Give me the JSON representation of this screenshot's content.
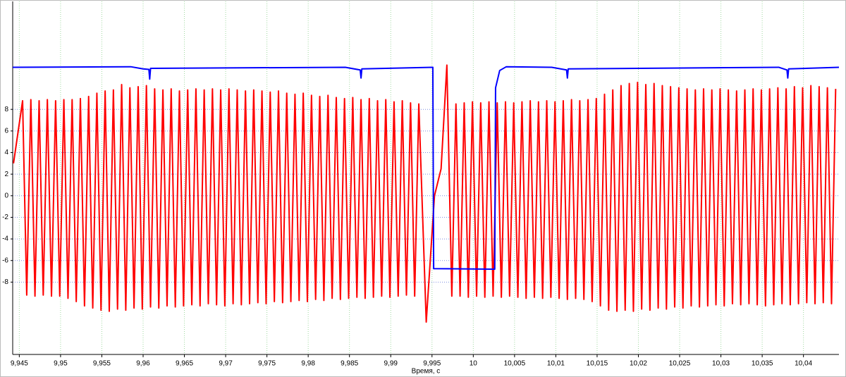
{
  "chart_data": {
    "type": "line",
    "x_label": "Время, с",
    "xlim": [
      9.9442,
      10.0443
    ],
    "ylim": [
      -14.7,
      18
    ],
    "grid": true,
    "xticks": [
      {
        "value": 9.945,
        "label": "9,945"
      },
      {
        "value": 9.95,
        "label": "9,95"
      },
      {
        "value": 9.955,
        "label": "9,955"
      },
      {
        "value": 9.96,
        "label": "9,96"
      },
      {
        "value": 9.965,
        "label": "9,965"
      },
      {
        "value": 9.97,
        "label": "9,97"
      },
      {
        "value": 9.975,
        "label": "9,975"
      },
      {
        "value": 9.98,
        "label": "9,98"
      },
      {
        "value": 9.985,
        "label": "9,985"
      },
      {
        "value": 9.99,
        "label": "9,99"
      },
      {
        "value": 9.995,
        "label": "9,995"
      },
      10,
      {
        "value": 10.005,
        "label": "10,005"
      },
      {
        "value": 10.01,
        "label": "10,01"
      },
      {
        "value": 10.015,
        "label": "10,015"
      },
      {
        "value": 10.02,
        "label": "10,02"
      },
      {
        "value": 10.025,
        "label": "10,025"
      },
      {
        "value": 10.03,
        "label": "10,03"
      },
      {
        "value": 10.035,
        "label": "10,035"
      },
      {
        "value": 10.04,
        "label": "10,04"
      }
    ],
    "yticks": [
      8,
      6,
      4,
      2,
      0,
      -2,
      -4,
      -6,
      -8
    ],
    "series": [
      {
        "color": "#ff0000",
        "x": [
          9.9443,
          9.9454,
          9.9459,
          9.9464,
          9.9469,
          9.9474,
          9.9479,
          9.9484,
          9.9489,
          9.9494,
          9.9499,
          9.9504,
          9.9509,
          9.9514,
          9.9519,
          9.9524,
          9.9529,
          9.9534,
          9.9539,
          9.9544,
          9.9549,
          9.9554,
          9.9559,
          9.9564,
          9.9569,
          9.9574,
          9.9579,
          9.9584,
          9.9589,
          9.9594,
          9.9599,
          9.9604,
          9.9609,
          9.9614,
          9.9619,
          9.9624,
          9.9629,
          9.9634,
          9.9639,
          9.9644,
          9.9649,
          9.9654,
          9.9659,
          9.9664,
          9.9669,
          9.9674,
          9.9679,
          9.9684,
          9.9689,
          9.9694,
          9.9699,
          9.9704,
          9.9709,
          9.9714,
          9.9719,
          9.9724,
          9.9729,
          9.9734,
          9.9739,
          9.9744,
          9.9749,
          9.9754,
          9.9759,
          9.9764,
          9.9769,
          9.9774,
          9.9779,
          9.9784,
          9.9789,
          9.9794,
          9.9799,
          9.9804,
          9.9809,
          9.9814,
          9.9819,
          9.9824,
          9.9829,
          9.9834,
          9.9839,
          9.9844,
          9.9849,
          9.9854,
          9.9859,
          9.9864,
          9.9869,
          9.9874,
          9.9879,
          9.9884,
          9.9889,
          9.9894,
          9.9899,
          9.9904,
          9.9909,
          9.9914,
          9.9919,
          9.9924,
          9.9929,
          9.9934,
          9.9943,
          9.9953,
          9.9961,
          9.9968,
          9.9974,
          9.9979,
          9.9984,
          9.9989,
          9.9994,
          9.9999,
          10.0004,
          10.0009,
          10.0014,
          10.0019,
          10.0024,
          10.0029,
          10.0034,
          10.0039,
          10.0044,
          10.0049,
          10.0054,
          10.0059,
          10.0064,
          10.0069,
          10.0074,
          10.0079,
          10.0084,
          10.0089,
          10.0094,
          10.0099,
          10.0104,
          10.0109,
          10.0114,
          10.0119,
          10.0124,
          10.0129,
          10.0134,
          10.0139,
          10.0144,
          10.0149,
          10.0154,
          10.0159,
          10.0164,
          10.0169,
          10.0174,
          10.0179,
          10.0184,
          10.0189,
          10.0194,
          10.0199,
          10.0204,
          10.0209,
          10.0214,
          10.0219,
          10.0224,
          10.0229,
          10.0234,
          10.0239,
          10.0244,
          10.0249,
          10.0254,
          10.0259,
          10.0264,
          10.0269,
          10.0274,
          10.0279,
          10.0284,
          10.0289,
          10.0294,
          10.0299,
          10.0304,
          10.0309,
          10.0314,
          10.0319,
          10.0324,
          10.0329,
          10.0334,
          10.0339,
          10.0344,
          10.0349,
          10.0354,
          10.0359,
          10.0364,
          10.0369,
          10.0374,
          10.0379,
          10.0384,
          10.0389,
          10.0394,
          10.0399,
          10.0404,
          10.0409,
          10.0414,
          10.0419,
          10.0424,
          10.0429,
          10.0434,
          10.0439
        ],
        "values": [
          3.0,
          8.8,
          -9.2,
          8.9,
          -9.3,
          8.8,
          -9.2,
          8.9,
          -9.3,
          8.8,
          -9.3,
          8.9,
          -9.5,
          8.9,
          -9.8,
          9.0,
          -10.2,
          9.2,
          -10.4,
          9.5,
          -10.6,
          9.7,
          -10.7,
          9.8,
          -10.5,
          10.3,
          -10.6,
          10.0,
          -10.4,
          10.1,
          -10.5,
          10.2,
          -10.3,
          9.9,
          -10.4,
          9.8,
          -10.2,
          9.9,
          -10.3,
          9.7,
          -10.2,
          9.8,
          -10.1,
          9.9,
          -10.2,
          9.8,
          -10.0,
          9.9,
          -10.1,
          9.8,
          -10.2,
          9.9,
          -10.0,
          9.8,
          -10.1,
          9.7,
          -10.0,
          9.8,
          -9.9,
          9.7,
          -10.0,
          9.6,
          -9.8,
          9.7,
          -9.9,
          9.5,
          -9.8,
          9.4,
          -9.7,
          9.5,
          -9.8,
          9.3,
          -9.6,
          9.2,
          -9.7,
          9.3,
          -9.5,
          9.1,
          -9.6,
          9.0,
          -9.5,
          9.1,
          -9.4,
          8.9,
          -9.5,
          9.0,
          -9.4,
          8.8,
          -9.3,
          8.9,
          -9.4,
          8.7,
          -9.3,
          8.8,
          -9.2,
          8.6,
          -9.3,
          8.5,
          -11.7,
          0,
          2.5,
          12.1,
          -9.3,
          8.5,
          -9.3,
          8.6,
          -9.4,
          8.7,
          -9.3,
          8.6,
          -9.4,
          8.7,
          -9.3,
          8.6,
          -9.4,
          8.7,
          -9.3,
          8.6,
          -9.4,
          8.7,
          -9.5,
          8.8,
          -9.4,
          8.7,
          -9.5,
          8.8,
          -9.4,
          8.7,
          -9.5,
          8.8,
          -9.6,
          8.9,
          -9.5,
          8.8,
          -9.6,
          8.9,
          -9.8,
          9.0,
          -10.2,
          9.4,
          -10.6,
          9.8,
          -10.7,
          10.2,
          -10.6,
          10.4,
          -10.7,
          10.5,
          -10.5,
          10.3,
          -10.6,
          10.4,
          -10.4,
          10.2,
          -10.5,
          10.1,
          -10.3,
          10.0,
          -10.4,
          9.9,
          -10.2,
          9.8,
          -10.3,
          9.9,
          -10.2,
          9.8,
          -10.1,
          9.9,
          -10.2,
          9.8,
          -10.0,
          9.7,
          -10.1,
          9.8,
          -10.0,
          9.9,
          -10.1,
          9.8,
          -10.2,
          9.9,
          -10.1,
          10.0,
          -10.0,
          9.9,
          -10.1,
          10.1,
          -10.0,
          10.0,
          -9.9,
          10.2,
          -10.0,
          10.1,
          -9.9,
          10.0,
          -10.0,
          9.9
        ]
      },
      {
        "color": "#0000ff",
        "x": [
          9.9442,
          9.9585,
          9.96,
          9.9607,
          9.9608,
          9.9609,
          9.9845,
          9.9863,
          9.9864,
          9.9865,
          9.9951,
          9.9952,
          10.0026,
          10.0027,
          10.0032,
          10.004,
          10.0095,
          10.0113,
          10.0114,
          10.0115,
          10.037,
          10.038,
          10.0381,
          10.0382,
          10.0443
        ],
        "values": [
          11.9,
          11.95,
          11.75,
          11.7,
          10.8,
          11.8,
          11.9,
          11.65,
          10.9,
          11.75,
          11.9,
          -6.75,
          -6.8,
          10.0,
          11.6,
          11.95,
          11.9,
          11.65,
          10.9,
          11.75,
          11.9,
          11.65,
          10.9,
          11.75,
          11.9
        ]
      }
    ]
  }
}
